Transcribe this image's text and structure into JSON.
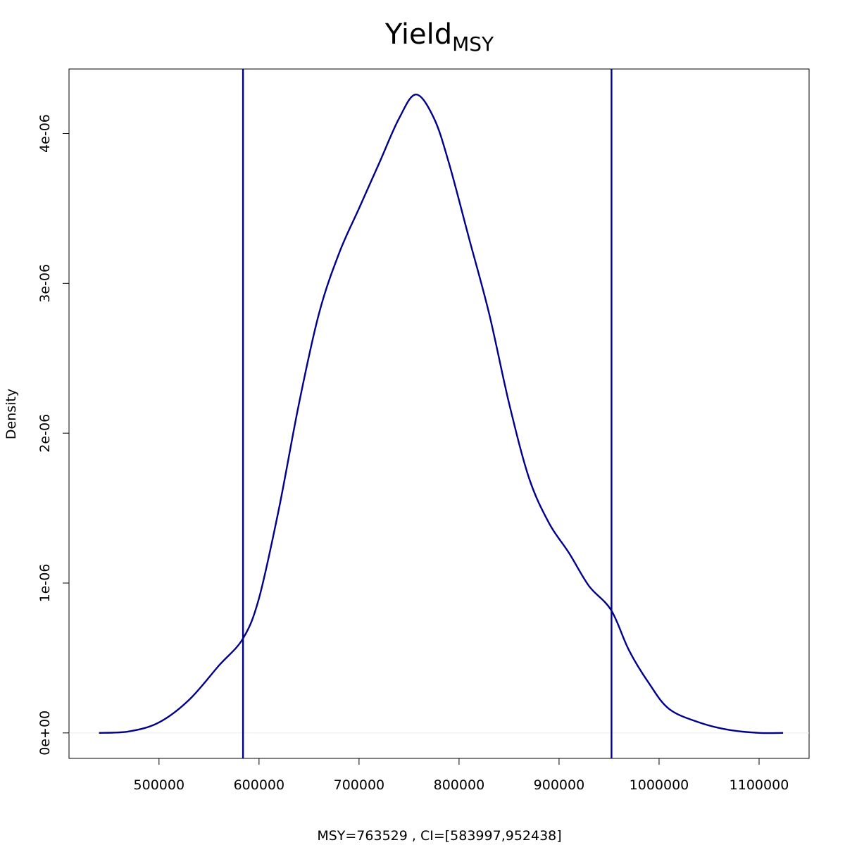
{
  "chart_data": {
    "type": "line",
    "title": "Yield",
    "title_subscript": "MSY",
    "xlabel": "MSY=763529 , CI=[583997,952438]",
    "ylabel": "Density",
    "xlim": [
      410000,
      1150000
    ],
    "ylim": [
      -1.7e-07,
      4.43e-06
    ],
    "x_ticks": [
      500000,
      600000,
      700000,
      800000,
      900000,
      1000000,
      1100000
    ],
    "x_tick_labels": [
      "500000",
      "600000",
      "700000",
      "800000",
      "900000",
      "1000000",
      "1100000"
    ],
    "y_ticks": [
      0,
      1e-06,
      2e-06,
      3e-06,
      4e-06
    ],
    "y_tick_labels": [
      "0e+00",
      "1e-06",
      "2e-06",
      "3e-06",
      "4e-06"
    ],
    "series_color": "#00008B",
    "grid": false,
    "series": [
      {
        "x": [
          440000,
          470000,
          500000,
          530000,
          560000,
          584000,
          600000,
          620000,
          640000,
          660000,
          680000,
          700000,
          720000,
          740000,
          757000,
          775000,
          790000,
          810000,
          830000,
          850000,
          870000,
          890000,
          910000,
          930000,
          952000,
          970000,
          990000,
          1010000,
          1040000,
          1070000,
          1100000,
          1124000
        ],
        "y": [
          0.0,
          1e-08,
          7e-08,
          2.2e-07,
          4.5e-07,
          6.3e-07,
          9e-07,
          1.5e-06,
          2.2e-06,
          2.8e-06,
          3.2e-06,
          3.5e-06,
          3.8e-06,
          4.1e-06,
          4.26e-06,
          4.1e-06,
          3.8e-06,
          3.3e-06,
          2.8e-06,
          2.2e-06,
          1.7e-06,
          1.4e-06,
          1.2e-06,
          9.8e-07,
          8.2e-07,
          5.5e-07,
          3.3e-07,
          1.6e-07,
          7e-08,
          2e-08,
          0.0,
          0.0
        ]
      }
    ],
    "vlines": [
      583997,
      952438
    ]
  }
}
